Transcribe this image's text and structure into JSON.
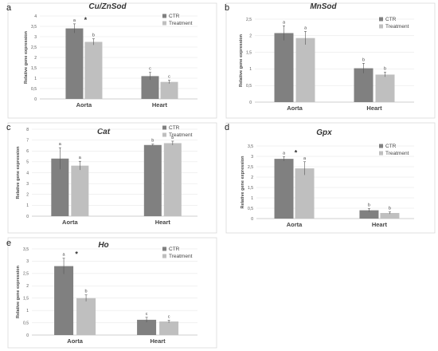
{
  "colors": {
    "ctr": "#808080",
    "treatment": "#bfbfbf",
    "error": "#555555",
    "grid": "#e3e3e3",
    "axis": "#bfbfbf"
  },
  "chart_data": [
    {
      "letter": "a",
      "type": "bar",
      "title": "Cu/ZnSod",
      "ylabel": "Relative gene expression",
      "categories": [
        "Aorta",
        "Heart"
      ],
      "ylim": [
        0,
        4
      ],
      "yticks": [
        "0",
        "0,5",
        "1",
        "1,5",
        "2",
        "2,5",
        "3",
        "3,5",
        "4"
      ],
      "legend": "top-right",
      "series": [
        {
          "name": "CTR",
          "values": [
            3.4,
            1.1
          ],
          "errors": [
            0.22,
            0.18
          ],
          "labels": [
            "a",
            "c"
          ]
        },
        {
          "name": "Treatment",
          "values": [
            2.75,
            0.82
          ],
          "errors": [
            0.15,
            0.08
          ],
          "labels": [
            "b",
            "c"
          ]
        }
      ],
      "stars": [
        {
          "category": 0,
          "text": "*"
        }
      ]
    },
    {
      "letter": "b",
      "type": "bar",
      "title": "MnSod",
      "ylabel": "Relative gene expression",
      "categories": [
        "Aorta",
        "Heart"
      ],
      "ylim": [
        0,
        2.5
      ],
      "yticks": [
        "0",
        "0,5",
        "1",
        "1,5",
        "2",
        "2,5"
      ],
      "legend": "top-right",
      "series": [
        {
          "name": "CTR",
          "values": [
            2.08,
            1.02
          ],
          "errors": [
            0.22,
            0.15
          ],
          "labels": [
            "a",
            "b"
          ]
        },
        {
          "name": "Treatment",
          "values": [
            1.93,
            0.83
          ],
          "errors": [
            0.2,
            0.07
          ],
          "labels": [
            "a",
            "b"
          ]
        }
      ],
      "stars": []
    },
    {
      "letter": "c",
      "type": "bar",
      "title": "Cat",
      "ylabel": "Relative gene expression",
      "categories": [
        "Aorta",
        "Heart"
      ],
      "ylim": [
        0,
        8
      ],
      "yticks": [
        "0",
        "1",
        "2",
        "3",
        "4",
        "5",
        "6",
        "7",
        "8"
      ],
      "legend": "top-right",
      "series": [
        {
          "name": "CTR",
          "values": [
            5.3,
            6.55
          ],
          "errors": [
            1.0,
            0.08
          ],
          "labels": [
            "a",
            "b"
          ]
        },
        {
          "name": "Treatment",
          "values": [
            4.65,
            6.72
          ],
          "errors": [
            0.4,
            0.18
          ],
          "labels": [
            "a",
            "b"
          ]
        }
      ],
      "stars": []
    },
    {
      "letter": "d",
      "type": "bar",
      "title": "Gpx",
      "ylabel": "Relative gene expression",
      "categories": [
        "Aorta",
        "Heart"
      ],
      "ylim": [
        0,
        3.5
      ],
      "yticks": [
        "0",
        "0,5",
        "1",
        "1,5",
        "2",
        "2,5",
        "3",
        "3,5"
      ],
      "legend": "top-right",
      "series": [
        {
          "name": "CTR",
          "values": [
            2.88,
            0.4
          ],
          "errors": [
            0.1,
            0.08
          ],
          "labels": [
            "a",
            "b"
          ]
        },
        {
          "name": "Treatment",
          "values": [
            2.42,
            0.27
          ],
          "errors": [
            0.32,
            0.05
          ],
          "labels": [
            "a",
            "b"
          ]
        }
      ],
      "stars": [
        {
          "category": 0,
          "text": "*"
        }
      ]
    },
    {
      "letter": "e",
      "type": "bar",
      "title": "Ho",
      "ylabel": "Relative gene expression",
      "categories": [
        "Aorta",
        "Heart"
      ],
      "ylim": [
        0,
        3.5
      ],
      "yticks": [
        "0",
        "0,5",
        "1",
        "1,5",
        "2",
        "2,5",
        "3",
        "3,5"
      ],
      "legend": "top-right",
      "series": [
        {
          "name": "CTR",
          "values": [
            2.8,
            0.62
          ],
          "errors": [
            0.32,
            0.1
          ],
          "labels": [
            "a",
            "c"
          ]
        },
        {
          "name": "Treatment",
          "values": [
            1.5,
            0.55
          ],
          "errors": [
            0.13,
            0.05
          ],
          "labels": [
            "b",
            "c"
          ]
        }
      ],
      "stars": [
        {
          "category": 0,
          "text": "*"
        }
      ]
    }
  ]
}
